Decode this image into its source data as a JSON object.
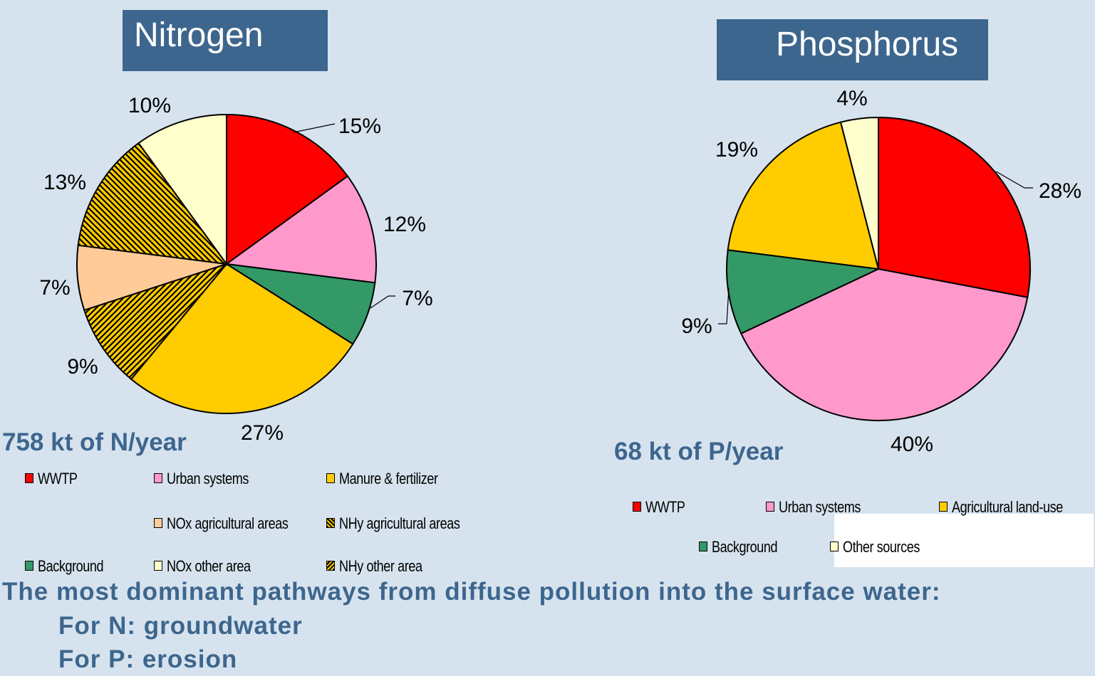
{
  "nitrogen": {
    "title": "Nitrogen",
    "total": "758 kt of N/year",
    "legend": [
      {
        "label": "WWTP",
        "color": "#ff0000",
        "pattern": "solid"
      },
      {
        "label": "Urban systems",
        "color": "#ff99cc",
        "pattern": "solid"
      },
      {
        "label": "Manure & fertilizer",
        "color": "#ffcc00",
        "pattern": "solid"
      },
      {
        "label": "NOx agricultural areas",
        "color": "#ffcc99",
        "pattern": "solid"
      },
      {
        "label": "NHy agricultural areas",
        "color": "#ffcc00",
        "pattern": "hatch-back"
      },
      {
        "label": "Background",
        "color": "#339966",
        "pattern": "solid"
      },
      {
        "label": "NOx other area",
        "color": "#ffffcc",
        "pattern": "solid"
      },
      {
        "label": "NHy other area",
        "color": "#ffcc00",
        "pattern": "hatch-fwd"
      }
    ]
  },
  "phosphorus": {
    "title": "Phosphorus",
    "total": "68 kt of P/year",
    "legend": [
      {
        "label": "WWTP",
        "color": "#ff0000",
        "pattern": "solid"
      },
      {
        "label": "Urban systems",
        "color": "#ff99cc",
        "pattern": "solid"
      },
      {
        "label": "Agricultural land-use",
        "color": "#ffcc00",
        "pattern": "solid"
      },
      {
        "label": "Background",
        "color": "#339966",
        "pattern": "solid"
      },
      {
        "label": "Other sources",
        "color": "#ffffcc",
        "pattern": "solid"
      }
    ]
  },
  "chart_data": [
    {
      "type": "pie",
      "title": "Nitrogen",
      "slices": [
        {
          "name": "WWTP",
          "value": 15,
          "label": "15%",
          "color": "#ff0000",
          "pattern": "solid"
        },
        {
          "name": "Urban systems",
          "value": 12,
          "label": "12%",
          "color": "#ff99cc",
          "pattern": "solid"
        },
        {
          "name": "Background",
          "value": 7,
          "label": "7%",
          "color": "#339966",
          "pattern": "solid"
        },
        {
          "name": "Manure & fertilizer",
          "value": 27,
          "label": "27%",
          "color": "#ffcc00",
          "pattern": "solid"
        },
        {
          "name": "NHy other area",
          "value": 9,
          "label": "9%",
          "color": "#ffcc00",
          "pattern": "hatch-fwd"
        },
        {
          "name": "NOx agricultural areas",
          "value": 7,
          "label": "7%",
          "color": "#ffcc99",
          "pattern": "solid"
        },
        {
          "name": "NHy agricultural areas",
          "value": 13,
          "label": "13%",
          "color": "#ffcc00",
          "pattern": "hatch-back"
        },
        {
          "name": "NOx other area",
          "value": 10,
          "label": "10%",
          "color": "#ffffcc",
          "pattern": "solid"
        }
      ]
    },
    {
      "type": "pie",
      "title": "Phosphorus",
      "slices": [
        {
          "name": "WWTP",
          "value": 28,
          "label": "28%",
          "color": "#ff0000",
          "pattern": "solid"
        },
        {
          "name": "Urban systems",
          "value": 40,
          "label": "40%",
          "color": "#ff99cc",
          "pattern": "solid"
        },
        {
          "name": "Background",
          "value": 9,
          "label": "9%",
          "color": "#339966",
          "pattern": "solid"
        },
        {
          "name": "Agricultural land-use",
          "value": 19,
          "label": "19%",
          "color": "#ffcc00",
          "pattern": "solid"
        },
        {
          "name": "Other sources",
          "value": 4,
          "label": "4%",
          "color": "#ffffcc",
          "pattern": "solid"
        }
      ]
    }
  ],
  "footer": {
    "line1": "The most dominant pathways from diffuse pollution into the surface water:",
    "line2": "For N: groundwater",
    "line3": "For P: erosion"
  }
}
